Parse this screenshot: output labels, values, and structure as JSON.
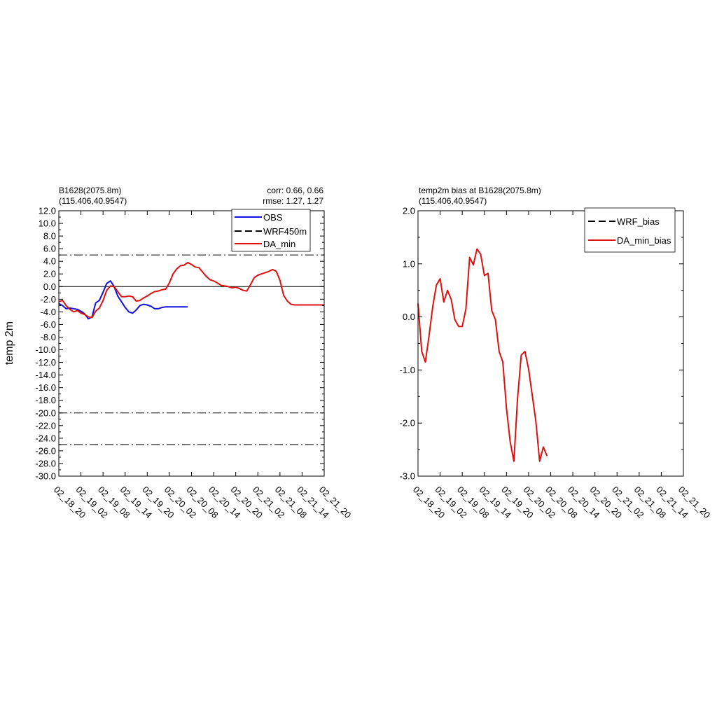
{
  "chart_data": [
    {
      "type": "line",
      "header_left": [
        "B1628(2075.8m)",
        "(115.406,40.9547)"
      ],
      "header_right": [
        "corr:  0.66, 0.66",
        "rmse: 1.27, 1.27"
      ],
      "xlabel": "",
      "ylabel": "temp 2m",
      "ylim": [
        -30,
        12
      ],
      "ytick_step": 2,
      "yticks": [
        "12.0",
        "10.0",
        "8.0",
        "6.0",
        "4.0",
        "2.0",
        "0.0",
        "-2.0",
        "-4.0",
        "-6.0",
        "-8.0",
        "-10.0",
        "-12.0",
        "-14.0",
        "-16.0",
        "-18.0",
        "-20.0",
        "-22.0",
        "-24.0",
        "-26.0",
        "-28.0",
        "-30.0"
      ],
      "xlim": [
        0,
        72
      ],
      "xticks": [
        "02_18_20",
        "02_19_02",
        "02_19_08",
        "02_19_14",
        "02_19_20",
        "02_20_02",
        "02_20_08",
        "02_20_14",
        "02_20_20",
        "02_21_02",
        "02_21_08",
        "02_21_14",
        "02_21_20"
      ],
      "reference_lines": [
        5,
        0,
        -20,
        -25
      ],
      "legend": {
        "placement": "top-right",
        "entries": [
          "OBS",
          "WRF450m",
          "DA_min"
        ]
      },
      "series": [
        {
          "name": "OBS",
          "color": "#1010e0",
          "dash": "solid",
          "x": [
            0,
            1,
            2,
            3,
            4,
            5,
            6,
            7,
            8,
            9,
            10,
            11,
            12,
            13,
            14,
            15,
            16,
            17,
            18,
            19,
            20,
            21,
            22,
            23,
            24,
            25,
            26,
            27,
            28,
            29,
            30,
            31,
            32,
            33,
            34,
            35
          ],
          "y": [
            -2.7,
            -3.0,
            -3.5,
            -3.4,
            -3.5,
            -3.6,
            -3.9,
            -4.3,
            -5.1,
            -4.8,
            -2.6,
            -2.2,
            -0.9,
            0.5,
            0.9,
            0.0,
            -1.5,
            -2.4,
            -3.3,
            -4.0,
            -4.2,
            -3.7,
            -3.0,
            -2.8,
            -2.9,
            -3.1,
            -3.5,
            -3.5,
            -3.3,
            -3.2,
            -3.2,
            -3.2,
            -3.2,
            -3.2,
            -3.2,
            -3.2
          ]
        },
        {
          "name": "WRF450m",
          "color": "#000000",
          "dash": "dash",
          "x": [],
          "y": []
        },
        {
          "name": "DA_min",
          "color": "#e01010",
          "dash": "solid",
          "x": [
            0,
            1,
            2,
            3,
            4,
            5,
            6,
            7,
            8,
            9,
            10,
            11,
            12,
            13,
            14,
            15,
            16,
            17,
            18,
            19,
            20,
            21,
            22,
            23,
            24,
            25,
            26,
            27,
            28,
            29,
            30,
            31,
            32,
            33,
            34,
            35,
            36,
            37,
            38,
            39,
            40,
            41,
            42,
            43,
            44,
            45,
            46,
            47,
            48,
            49,
            50,
            51,
            52,
            53,
            54,
            55,
            56,
            57,
            58,
            59,
            60,
            61,
            62,
            63,
            64,
            65,
            66,
            67,
            68,
            69,
            70,
            71,
            72
          ],
          "y": [
            -2.4,
            -2.2,
            -3.0,
            -3.6,
            -4.0,
            -3.8,
            -4.2,
            -4.4,
            -4.8,
            -4.9,
            -3.9,
            -3.4,
            -2.2,
            -0.6,
            0.1,
            0.0,
            -0.8,
            -1.6,
            -1.6,
            -1.5,
            -1.6,
            -2.3,
            -2.2,
            -1.8,
            -1.5,
            -1.1,
            -0.8,
            -0.7,
            -0.5,
            -0.4,
            0.6,
            2.0,
            2.8,
            3.3,
            3.4,
            3.8,
            3.5,
            3.1,
            3.0,
            2.3,
            1.6,
            1.1,
            0.9,
            0.6,
            0.2,
            0.1,
            0.0,
            -0.2,
            -0.1,
            -0.3,
            -0.6,
            -0.7,
            0.3,
            1.4,
            1.8,
            2.0,
            2.2,
            2.4,
            2.7,
            2.4,
            1.0,
            -1.4,
            -2.3,
            -2.8,
            -2.9,
            -2.9,
            -2.9,
            -2.9,
            -2.9,
            -2.9,
            -2.9,
            -2.9,
            -2.9
          ]
        }
      ]
    },
    {
      "type": "line",
      "header_left": [
        "temp2m bias at B1628(2075.8m)",
        "(115.406,40.9547)"
      ],
      "xlabel": "",
      "ylabel": "",
      "ylim": [
        -3,
        2
      ],
      "ytick_step": 1,
      "yticks": [
        "2.0",
        "1.0",
        "0.0",
        "-1.0",
        "-2.0",
        "-3.0"
      ],
      "xlim": [
        0,
        72
      ],
      "xticks": [
        "02_18_20",
        "02_19_02",
        "02_19_08",
        "02_19_14",
        "02_19_20",
        "02_20_02",
        "02_20_08",
        "02_20_14",
        "02_20_20",
        "02_21_02",
        "02_21_08",
        "02_21_14",
        "02_21_20"
      ],
      "legend": {
        "placement": "top-right",
        "entries": [
          "WRF_bias",
          "DA_min_bias"
        ]
      },
      "series": [
        {
          "name": "WRF_bias",
          "color": "#000000",
          "dash": "dash",
          "x": [],
          "y": []
        },
        {
          "name": "DA_min_bias",
          "color": "#e01010",
          "dash": "solid",
          "x": [
            0,
            1,
            2,
            3,
            4,
            5,
            6,
            7,
            8,
            9,
            10,
            11,
            12,
            13,
            14,
            15,
            16,
            17,
            18,
            19,
            20,
            21,
            22,
            23,
            24,
            25,
            26,
            27,
            28,
            29,
            30,
            31,
            32,
            33,
            34,
            35
          ],
          "y": [
            0.25,
            -0.65,
            -0.85,
            -0.35,
            0.2,
            0.6,
            0.72,
            0.28,
            0.5,
            0.33,
            -0.05,
            -0.18,
            -0.18,
            0.15,
            1.12,
            0.98,
            1.28,
            1.18,
            0.78,
            0.82,
            0.12,
            -0.05,
            -0.65,
            -0.85,
            -1.72,
            -2.35,
            -2.72,
            -1.55,
            -0.72,
            -0.65,
            -0.98,
            -1.48,
            -1.98,
            -2.72,
            -2.45,
            -2.62
          ]
        }
      ]
    }
  ]
}
